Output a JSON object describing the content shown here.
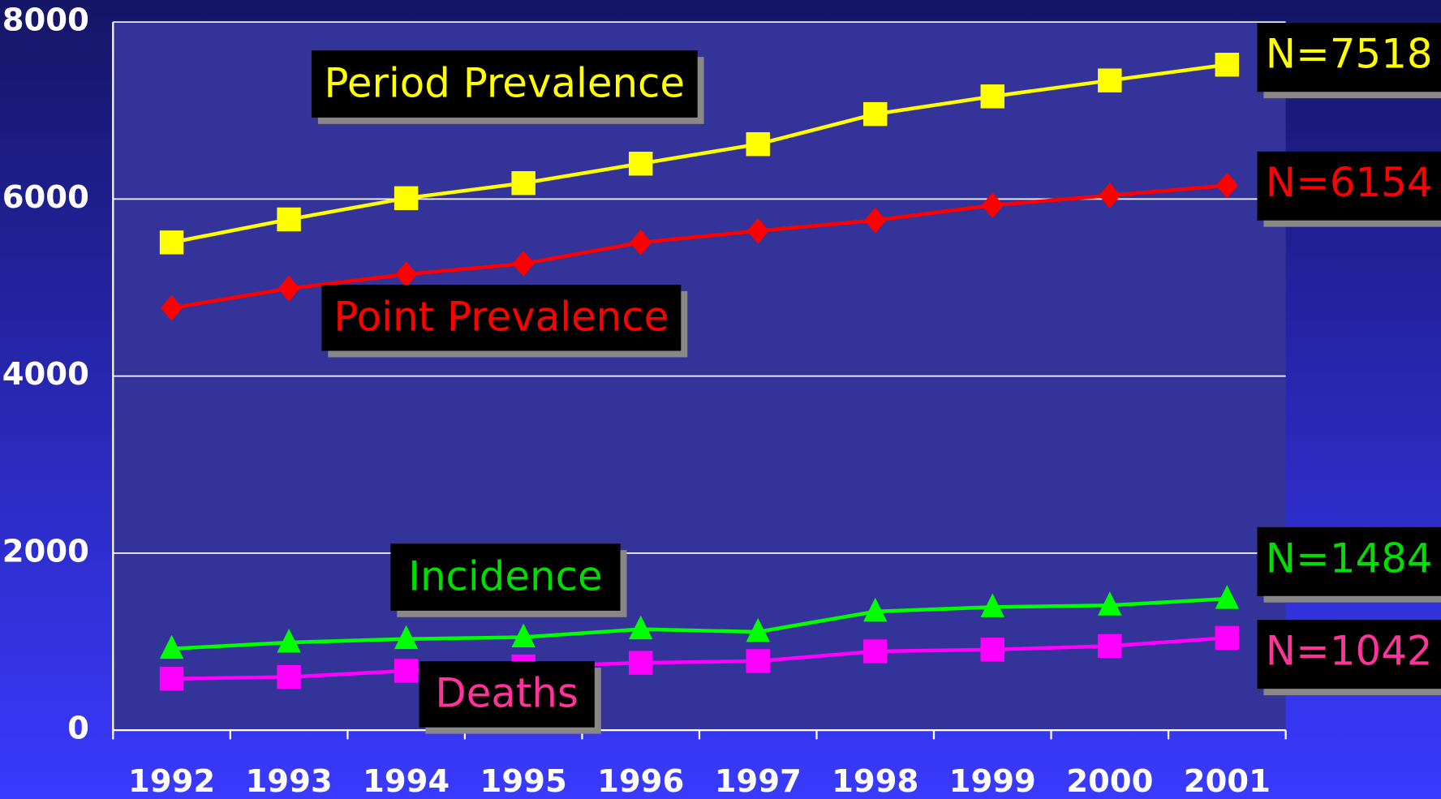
{
  "chart_data": {
    "type": "line",
    "categories": [
      "1992",
      "1993",
      "1994",
      "1995",
      "1996",
      "1997",
      "1998",
      "1999",
      "2000",
      "2001"
    ],
    "ylim": [
      0,
      8000
    ],
    "yticks": [
      0,
      2000,
      4000,
      6000,
      8000
    ],
    "grid": true,
    "series": [
      {
        "name": "Period Prevalence",
        "color": "#ffff00",
        "marker": "square",
        "values": [
          5510,
          5770,
          6010,
          6180,
          6400,
          6620,
          6960,
          7160,
          7340,
          7518
        ],
        "value_labels": [
          null,
          null,
          null,
          null,
          null,
          null,
          null,
          null,
          null,
          "N=7518"
        ]
      },
      {
        "name": "Point Prevalence",
        "color": "#ff0000",
        "marker": "diamond",
        "values": [
          4770,
          4990,
          5150,
          5270,
          5510,
          5640,
          5760,
          5930,
          6040,
          6154
        ],
        "value_labels": [
          null,
          null,
          null,
          null,
          null,
          null,
          null,
          null,
          null,
          "N=6154"
        ]
      },
      {
        "name": "Incidence",
        "color": "#00ff00",
        "marker": "triangle",
        "values": [
          920,
          990,
          1030,
          1050,
          1140,
          1110,
          1340,
          1390,
          1410,
          1484
        ],
        "value_labels": [
          null,
          null,
          null,
          null,
          null,
          null,
          null,
          null,
          null,
          "N=1484"
        ]
      },
      {
        "name": "Deaths",
        "color": "#ff00ff",
        "marker": "square",
        "values": [
          580,
          600,
          670,
          720,
          760,
          780,
          890,
          910,
          950,
          1042
        ],
        "value_labels": [
          null,
          null,
          null,
          null,
          null,
          null,
          null,
          null,
          null,
          "N=1042"
        ]
      }
    ]
  }
}
